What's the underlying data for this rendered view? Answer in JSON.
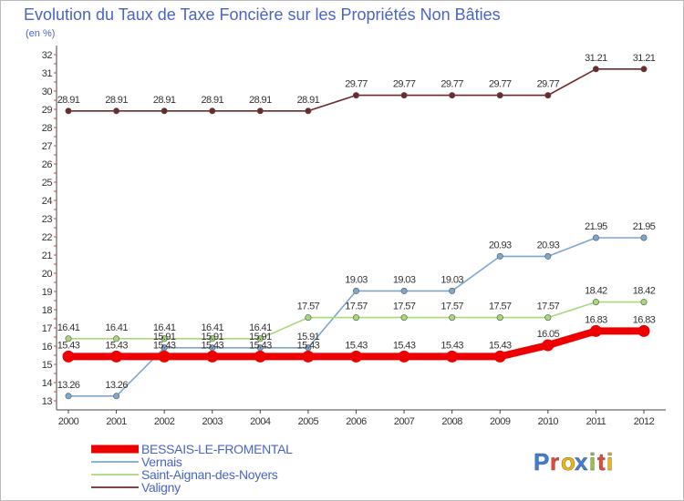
{
  "chart_data": {
    "type": "line",
    "title": "Evolution du Taux de Taxe Foncière sur les Propriétés Non Bâties",
    "subtitle": "(en %)",
    "xlabel": "",
    "ylabel": "",
    "x": [
      "2000",
      "2001",
      "2002",
      "2003",
      "2004",
      "2005",
      "2006",
      "2007",
      "2008",
      "2009",
      "2010",
      "2011",
      "2012"
    ],
    "ylim": [
      13,
      32
    ],
    "yticks": [
      "13",
      "14",
      "15",
      "16",
      "17",
      "18",
      "19",
      "20",
      "21",
      "22",
      "23",
      "24",
      "25",
      "26",
      "27",
      "28",
      "29",
      "30",
      "31",
      "32"
    ],
    "grid": false,
    "legend_position": "bottom-left",
    "series": [
      {
        "name": "Valigny",
        "color": "#6e2a2a",
        "values": [
          28.91,
          28.91,
          28.91,
          28.91,
          28.91,
          28.91,
          29.77,
          29.77,
          29.77,
          29.77,
          29.77,
          31.21,
          31.21
        ],
        "labels": [
          "28.91",
          "28.91",
          "28.91",
          "28.91",
          "28.91",
          "28.91",
          "29.77",
          "29.77",
          "29.77",
          "29.77",
          "29.77",
          "31.21",
          "31.21"
        ]
      },
      {
        "name": "Vernais",
        "color": "#7fa6cc",
        "values": [
          13.26,
          13.26,
          15.91,
          15.91,
          15.91,
          15.91,
          19.03,
          19.03,
          19.03,
          20.93,
          20.93,
          21.95,
          21.95
        ],
        "labels": [
          "13.26",
          "13.26",
          "15.91",
          "15.91",
          "15.91",
          "15.91",
          "19.03",
          "19.03",
          "19.03",
          "20.93",
          "20.93",
          "21.95",
          "21.95"
        ]
      },
      {
        "name": "Saint-Aignan-des-Noyers",
        "color": "#a6d97a",
        "values": [
          16.41,
          16.41,
          16.41,
          16.41,
          16.41,
          17.57,
          17.57,
          17.57,
          17.57,
          17.57,
          17.57,
          18.42,
          18.42
        ],
        "labels": [
          "16.41",
          "16.41",
          "16.41",
          "16.41",
          "16.41",
          "17.57",
          "17.57",
          "17.57",
          "17.57",
          "17.57",
          "17.57",
          "18.42",
          "18.42"
        ]
      },
      {
        "name": "BESSAIS-LE-FROMENTAL",
        "color": "#ee0000",
        "values": [
          15.43,
          15.43,
          15.43,
          15.43,
          15.43,
          15.43,
          15.43,
          15.43,
          15.43,
          15.43,
          16.05,
          16.83,
          16.83
        ],
        "labels": [
          "15.43",
          "15.43",
          "15.43",
          "15.43",
          "15.43",
          "15.43",
          "15.43",
          "15.43",
          "15.43",
          "15.43",
          "16.05",
          "16.83",
          "16.83"
        ]
      }
    ],
    "legend": [
      "BESSAIS-LE-FROMENTAL",
      "Vernais",
      "Saint-Aignan-des-Noyers",
      "Valigny"
    ]
  },
  "logo": {
    "text": "Proxiti",
    "colors": [
      "#3a7fd5",
      "#e8453c",
      "#f2b705",
      "#3a7fd5",
      "#8fc640",
      "#e8453c",
      "#f2b705"
    ]
  }
}
